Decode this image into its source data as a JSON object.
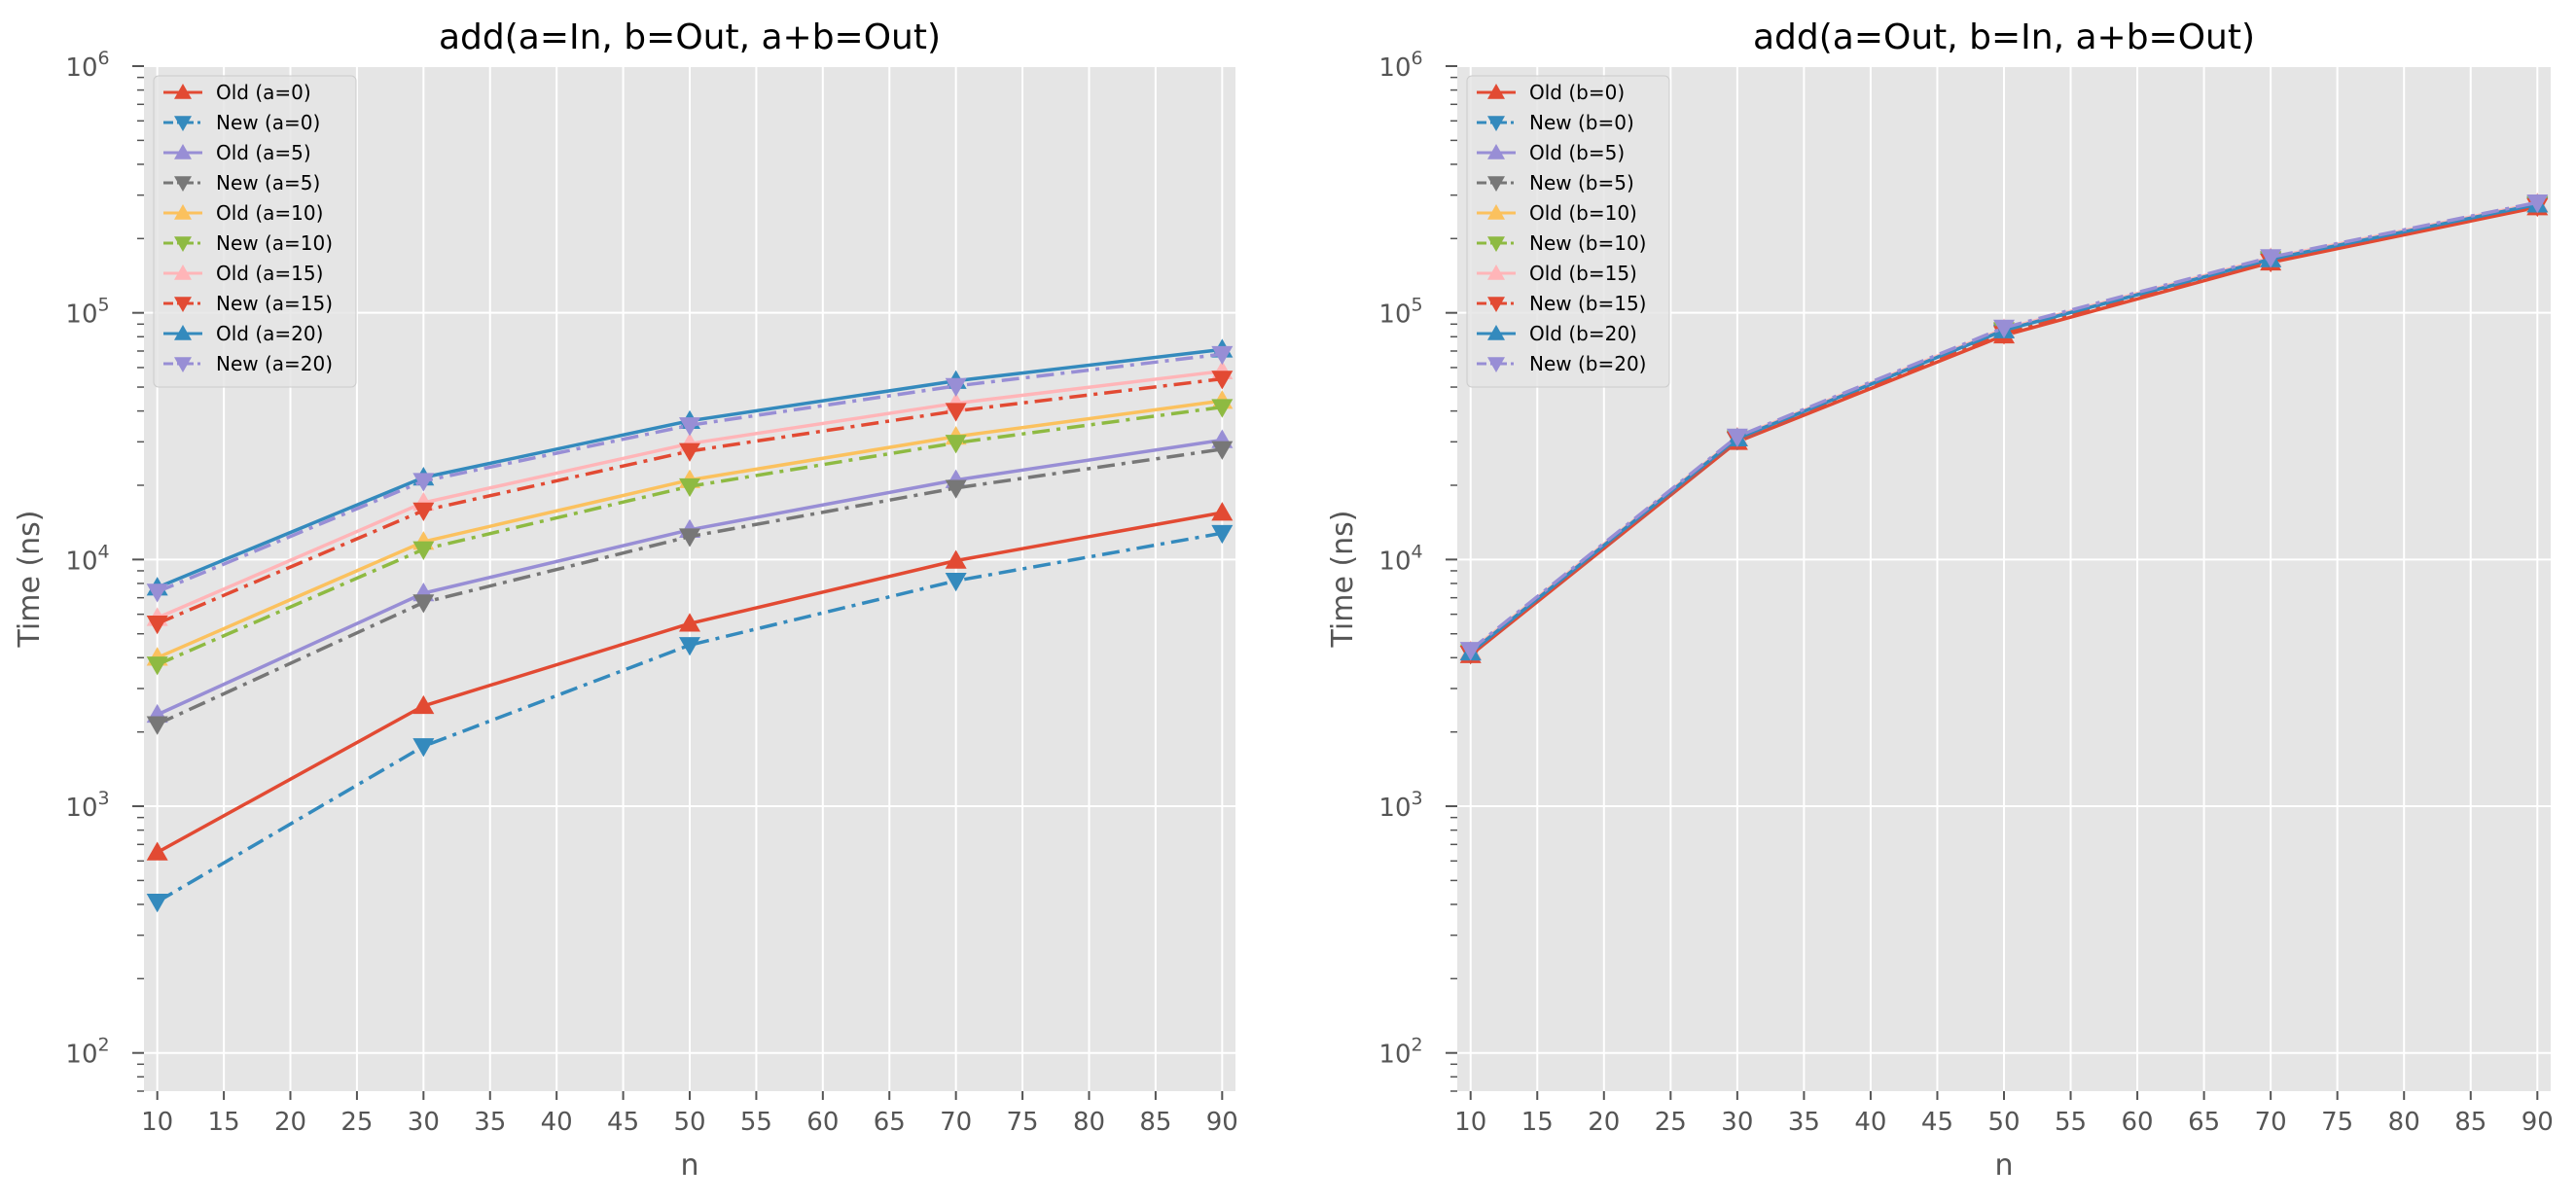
{
  "chart_data": [
    {
      "type": "line",
      "title": "add(a=In, b=Out, a+b=Out)",
      "xlabel": "n",
      "ylabel": "Time (ns)",
      "yscale": "log",
      "xlim": [
        9,
        91
      ],
      "ylim": [
        70,
        1000000
      ],
      "xticks": [
        10,
        15,
        20,
        25,
        30,
        35,
        40,
        45,
        50,
        55,
        60,
        65,
        70,
        75,
        80,
        85,
        90
      ],
      "yticks": [
        {
          "base": "10",
          "exp": "2",
          "value": 100
        },
        {
          "base": "10",
          "exp": "3",
          "value": 1000
        },
        {
          "base": "10",
          "exp": "4",
          "value": 10000
        },
        {
          "base": "10",
          "exp": "5",
          "value": 100000
        },
        {
          "base": "10",
          "exp": "6",
          "value": 1000000
        }
      ],
      "grid": true,
      "legend_position": "top-left",
      "x": [
        10,
        30,
        50,
        70,
        90
      ],
      "series": [
        {
          "name": "Old (a=0)",
          "values": [
            650,
            2550,
            5500,
            9900,
            15500
          ],
          "color": "#E24A33",
          "marker": "up",
          "dash": "solid"
        },
        {
          "name": "New (a=0)",
          "values": [
            410,
            1750,
            4500,
            8200,
            12800
          ],
          "color": "#348ABD",
          "marker": "down",
          "dash": "dashdot"
        },
        {
          "name": "Old (a=5)",
          "values": [
            2350,
            7300,
            13200,
            21000,
            30500
          ],
          "color": "#988ED5",
          "marker": "up",
          "dash": "solid"
        },
        {
          "name": "New (a=5)",
          "values": [
            2150,
            6700,
            12400,
            19500,
            28000
          ],
          "color": "#777777",
          "marker": "down",
          "dash": "dashdot"
        },
        {
          "name": "Old (a=10)",
          "values": [
            4000,
            11800,
            21000,
            31500,
            44000
          ],
          "color": "#FBC15E",
          "marker": "up",
          "dash": "solid"
        },
        {
          "name": "New (a=10)",
          "values": [
            3750,
            11000,
            19800,
            29700,
            41500
          ],
          "color": "#8EBA42",
          "marker": "down",
          "dash": "dashdot"
        },
        {
          "name": "Old (a=15)",
          "values": [
            5800,
            17000,
            29500,
            43000,
            58000
          ],
          "color": "#FFB5B8",
          "marker": "up",
          "dash": "solid"
        },
        {
          "name": "New (a=15)",
          "values": [
            5500,
            15800,
            27500,
            40000,
            54000
          ],
          "color": "#E24A33",
          "marker": "down",
          "dash": "dashdot"
        },
        {
          "name": "Old (a=20)",
          "values": [
            7700,
            21500,
            36500,
            53000,
            71000
          ],
          "color": "#348ABD",
          "marker": "up",
          "dash": "solid"
        },
        {
          "name": "New (a=20)",
          "values": [
            7400,
            20800,
            35000,
            50500,
            68000
          ],
          "color": "#988ED5",
          "marker": "down",
          "dash": "dashdot"
        }
      ]
    },
    {
      "type": "line",
      "title": "add(a=Out, b=In, a+b=Out)",
      "xlabel": "n",
      "ylabel": "Time (ns)",
      "yscale": "log",
      "xlim": [
        9,
        91
      ],
      "ylim": [
        70,
        1000000
      ],
      "xticks": [
        10,
        15,
        20,
        25,
        30,
        35,
        40,
        45,
        50,
        55,
        60,
        65,
        70,
        75,
        80,
        85,
        90
      ],
      "yticks": [
        {
          "base": "10",
          "exp": "2",
          "value": 100
        },
        {
          "base": "10",
          "exp": "3",
          "value": 1000
        },
        {
          "base": "10",
          "exp": "4",
          "value": 10000
        },
        {
          "base": "10",
          "exp": "5",
          "value": 100000
        },
        {
          "base": "10",
          "exp": "6",
          "value": 1000000
        }
      ],
      "grid": true,
      "legend_position": "top-left",
      "x": [
        10,
        30,
        50,
        70,
        90
      ],
      "series": [
        {
          "name": "Old (b=0)",
          "values": [
            4100,
            30000,
            81000,
            160000,
            268000
          ],
          "color": "#E24A33",
          "marker": "up",
          "dash": "solid"
        },
        {
          "name": "New (b=0)",
          "values": [
            4150,
            30500,
            83000,
            162000,
            272000
          ],
          "color": "#348ABD",
          "marker": "down",
          "dash": "dashdot"
        },
        {
          "name": "Old (b=5)",
          "values": [
            4200,
            31000,
            85000,
            165000,
            276000
          ],
          "color": "#988ED5",
          "marker": "up",
          "dash": "solid"
        },
        {
          "name": "New (b=5)",
          "values": [
            4150,
            30800,
            84000,
            164000,
            274000
          ],
          "color": "#777777",
          "marker": "down",
          "dash": "dashdot"
        },
        {
          "name": "Old (b=10)",
          "values": [
            4250,
            31200,
            85500,
            166000,
            277000
          ],
          "color": "#FBC15E",
          "marker": "up",
          "dash": "solid"
        },
        {
          "name": "New (b=10)",
          "values": [
            4200,
            31000,
            85000,
            165000,
            276000
          ],
          "color": "#8EBA42",
          "marker": "down",
          "dash": "dashdot"
        },
        {
          "name": "Old (b=15)",
          "values": [
            4250,
            31300,
            86000,
            167000,
            278000
          ],
          "color": "#FFB5B8",
          "marker": "up",
          "dash": "solid"
        },
        {
          "name": "New (b=15)",
          "values": [
            4150,
            30600,
            82000,
            161000,
            270000
          ],
          "color": "#E24A33",
          "marker": "down",
          "dash": "dashdot"
        },
        {
          "name": "Old (b=20)",
          "values": [
            4200,
            31000,
            85000,
            165000,
            275000
          ],
          "color": "#348ABD",
          "marker": "up",
          "dash": "solid"
        },
        {
          "name": "New (b=20)",
          "values": [
            4300,
            31500,
            87000,
            168000,
            280000
          ],
          "color": "#988ED5",
          "marker": "down",
          "dash": "dashdot"
        }
      ]
    }
  ]
}
